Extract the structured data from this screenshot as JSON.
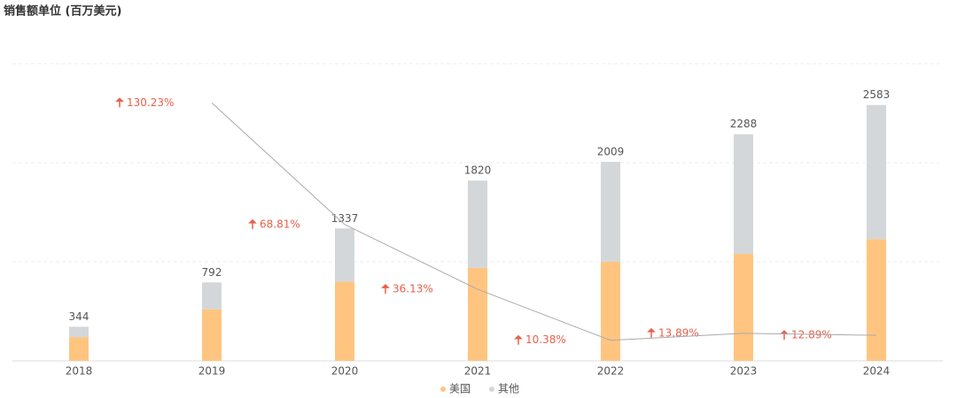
{
  "chart_data": {
    "type": "stacked-bar-line",
    "title": "销售额单位 (百万美元)",
    "categories": [
      "2018",
      "2019",
      "2020",
      "2021",
      "2022",
      "2023",
      "2024"
    ],
    "series": [
      {
        "name": "美国",
        "color": "#ffc580",
        "values": [
          240,
          520,
          800,
          940,
          1000,
          1080,
          1230
        ]
      },
      {
        "name": "其他",
        "color": "#d3d7da",
        "values": [
          104,
          272,
          537,
          880,
          1009,
          1208,
          1353
        ]
      }
    ],
    "totals": [
      344,
      792,
      1337,
      1820,
      2009,
      2288,
      2583
    ],
    "line": {
      "axis": "y2",
      "color": "#aaaaaa",
      "arrow_color": "#e8604c",
      "values": [
        null,
        130.23,
        68.81,
        36.13,
        10.38,
        13.89,
        12.89
      ],
      "value_labels": [
        null,
        "130.23%",
        "68.81%",
        "36.13%",
        "10.38%",
        "13.89%",
        "12.89%"
      ]
    },
    "ylim": [
      0,
      3000
    ],
    "yticks": [
      0,
      1000,
      2000,
      3000
    ],
    "y2lim": [
      0,
      150
    ],
    "grid": true
  }
}
